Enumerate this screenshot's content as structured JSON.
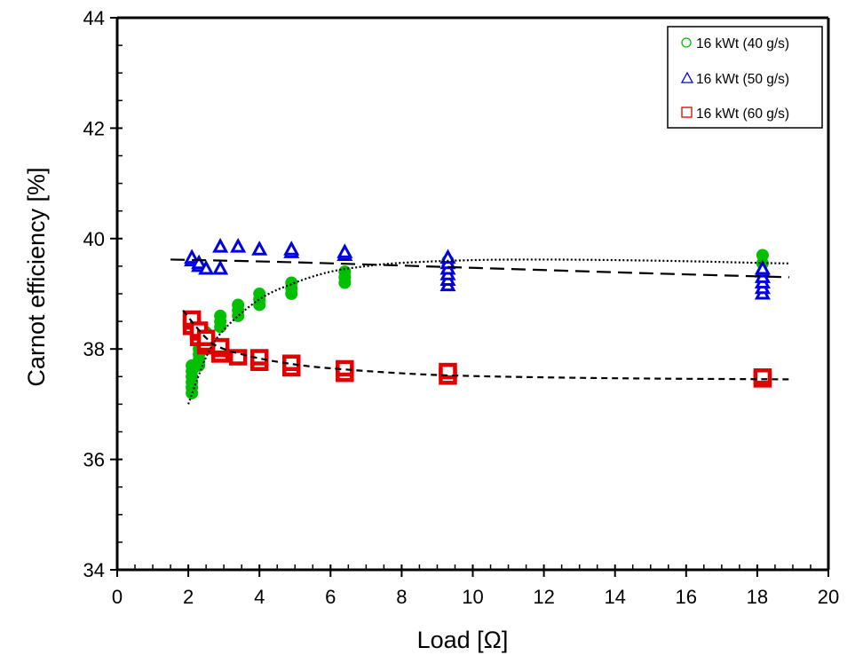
{
  "chart_data": {
    "type": "scatter",
    "title": "",
    "xlabel": "Load [Ω]",
    "ylabel": "Carnot efficiency  [%]",
    "xlim": [
      0,
      20
    ],
    "ylim": [
      34,
      44
    ],
    "x_major_step": 2,
    "x_minor_step": 0.5,
    "y_major_step": 2,
    "y_minor_step": 0.5,
    "x_tick_labels": [
      "0",
      "2",
      "4",
      "6",
      "8",
      "10",
      "12",
      "14",
      "16",
      "18",
      "20"
    ],
    "y_tick_labels": [
      "34",
      "36",
      "38",
      "40",
      "42",
      "44"
    ],
    "grid": false,
    "legend_position": "top-right",
    "series": [
      {
        "name": "16 kWt (40 g/s)",
        "marker": "circle",
        "color": "#00c000",
        "points": [
          [
            2.1,
            37.2
          ],
          [
            2.1,
            37.3
          ],
          [
            2.1,
            37.4
          ],
          [
            2.1,
            37.5
          ],
          [
            2.1,
            37.6
          ],
          [
            2.1,
            37.7
          ],
          [
            2.3,
            37.7
          ],
          [
            2.3,
            37.8
          ],
          [
            2.3,
            37.9
          ],
          [
            2.3,
            38.0
          ],
          [
            2.3,
            38.1
          ],
          [
            2.3,
            38.2
          ],
          [
            2.5,
            38.0
          ],
          [
            2.5,
            38.1
          ],
          [
            2.5,
            38.2
          ],
          [
            2.5,
            38.3
          ],
          [
            2.9,
            38.4
          ],
          [
            2.9,
            38.5
          ],
          [
            2.9,
            38.6
          ],
          [
            3.4,
            38.6
          ],
          [
            3.4,
            38.7
          ],
          [
            3.4,
            38.8
          ],
          [
            4.0,
            38.8
          ],
          [
            4.0,
            38.9
          ],
          [
            4.0,
            39.0
          ],
          [
            4.9,
            39.0
          ],
          [
            4.9,
            39.1
          ],
          [
            4.9,
            39.2
          ],
          [
            6.4,
            39.2
          ],
          [
            6.4,
            39.3
          ],
          [
            6.4,
            39.4
          ],
          [
            9.3,
            39.5
          ],
          [
            9.3,
            39.6
          ],
          [
            18.15,
            39.55
          ],
          [
            18.15,
            39.7
          ]
        ],
        "trend": {
          "style": "dotted",
          "points": [
            [
              2.0,
              37.0
            ],
            [
              2.5,
              37.85
            ],
            [
              3.0,
              38.35
            ],
            [
              4.0,
              38.9
            ],
            [
              5.0,
              39.2
            ],
            [
              6.0,
              39.4
            ],
            [
              7.0,
              39.5
            ],
            [
              8.0,
              39.56
            ],
            [
              10.0,
              39.61
            ],
            [
              12.0,
              39.62
            ],
            [
              14.0,
              39.61
            ],
            [
              16.0,
              39.59
            ],
            [
              18.0,
              39.56
            ],
            [
              18.9,
              39.55
            ]
          ]
        }
      },
      {
        "name": "16 kWt (50 g/s)",
        "marker": "triangle",
        "color": "#0000e0",
        "points": [
          [
            2.1,
            39.6
          ],
          [
            2.1,
            39.65
          ],
          [
            2.3,
            39.5
          ],
          [
            2.3,
            39.55
          ],
          [
            2.5,
            39.45
          ],
          [
            2.9,
            39.45
          ],
          [
            2.9,
            39.85
          ],
          [
            3.4,
            39.85
          ],
          [
            4.0,
            39.8
          ],
          [
            4.9,
            39.75
          ],
          [
            4.9,
            39.8
          ],
          [
            6.4,
            39.7
          ],
          [
            6.4,
            39.75
          ],
          [
            9.3,
            39.15
          ],
          [
            9.3,
            39.25
          ],
          [
            9.3,
            39.35
          ],
          [
            9.3,
            39.45
          ],
          [
            9.3,
            39.55
          ],
          [
            9.3,
            39.65
          ],
          [
            18.15,
            39.0
          ],
          [
            18.15,
            39.1
          ],
          [
            18.15,
            39.2
          ],
          [
            18.15,
            39.3
          ],
          [
            18.15,
            39.4
          ],
          [
            18.15,
            39.45
          ]
        ],
        "trend": {
          "style": "long-dash",
          "points": [
            [
              1.5,
              39.62
            ],
            [
              5.0,
              39.57
            ],
            [
              10.0,
              39.47
            ],
            [
              15.0,
              39.37
            ],
            [
              18.9,
              39.3
            ]
          ]
        }
      },
      {
        "name": "16 kWt (60 g/s)",
        "marker": "square",
        "color": "#e00000",
        "points": [
          [
            2.1,
            38.4
          ],
          [
            2.1,
            38.5
          ],
          [
            2.1,
            38.55
          ],
          [
            2.3,
            38.2
          ],
          [
            2.3,
            38.3
          ],
          [
            2.3,
            38.35
          ],
          [
            2.5,
            38.05
          ],
          [
            2.5,
            38.1
          ],
          [
            2.5,
            38.2
          ],
          [
            2.9,
            37.9
          ],
          [
            2.9,
            38.0
          ],
          [
            2.9,
            38.05
          ],
          [
            3.4,
            37.85
          ],
          [
            4.0,
            37.75
          ],
          [
            4.0,
            37.85
          ],
          [
            4.9,
            37.65
          ],
          [
            4.9,
            37.75
          ],
          [
            6.4,
            37.55
          ],
          [
            6.4,
            37.65
          ],
          [
            9.3,
            37.5
          ],
          [
            9.3,
            37.6
          ],
          [
            18.15,
            37.45
          ],
          [
            18.15,
            37.5
          ]
        ],
        "trend": {
          "style": "short-dash",
          "points": [
            [
              1.85,
              38.7
            ],
            [
              2.5,
              38.2
            ],
            [
              3.0,
              38.0
            ],
            [
              4.0,
              37.83
            ],
            [
              5.0,
              37.72
            ],
            [
              6.0,
              37.65
            ],
            [
              8.0,
              37.56
            ],
            [
              10.0,
              37.51
            ],
            [
              14.0,
              37.47
            ],
            [
              18.9,
              37.45
            ]
          ]
        }
      }
    ]
  }
}
